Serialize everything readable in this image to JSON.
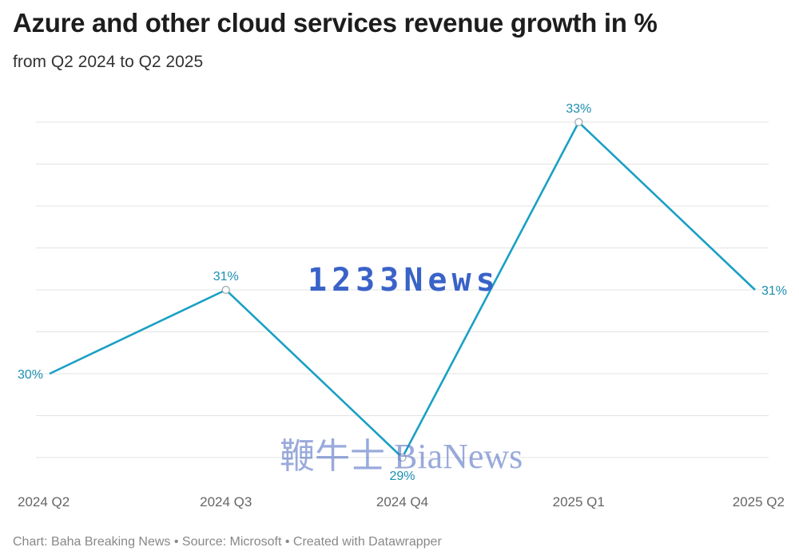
{
  "header": {
    "title": "Azure and other cloud services revenue growth in %",
    "subtitle": "from Q2 2024 to Q2 2025"
  },
  "footer": {
    "text": "Chart: Baha Breaking News • Source: Microsoft • Created with Datawrapper"
  },
  "watermarks": {
    "primary": "1233News",
    "secondary": "鞭牛士 BiaNews"
  },
  "colors": {
    "line": "#1aa0c4",
    "label": "#1a8fb0",
    "grid": "#e3e3e3",
    "tick": "#666666"
  },
  "chart_data": {
    "type": "line",
    "title": "Azure and other cloud services revenue growth in %",
    "subtitle": "from Q2 2024 to Q2 2025",
    "categories": [
      "2024 Q2",
      "2024 Q3",
      "2024 Q4",
      "2025 Q1",
      "2025 Q2"
    ],
    "series": [
      {
        "values": [
          30,
          31,
          29,
          33,
          31
        ]
      }
    ],
    "data_labels": [
      "30%",
      "31%",
      "29%",
      "33%",
      "31%"
    ],
    "ylim": [
      29,
      33
    ],
    "grid": true,
    "y_gridlines": [
      29,
      29.5,
      30,
      30.5,
      31,
      31.5,
      32,
      32.5,
      33
    ]
  }
}
